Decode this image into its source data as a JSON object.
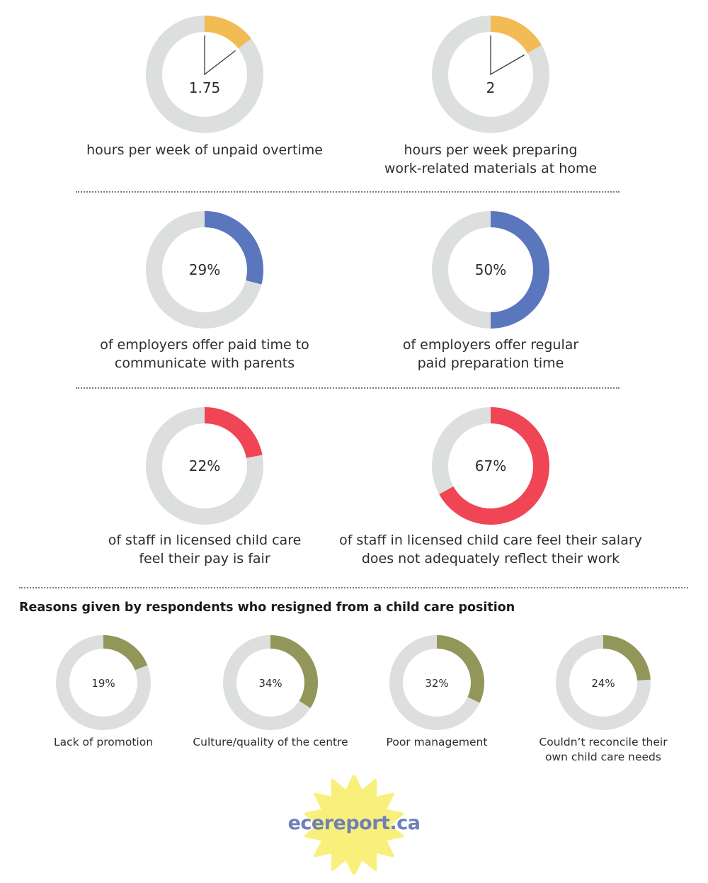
{
  "chart_data": [
    {
      "type": "pie",
      "variant": "clock",
      "value": 1.75,
      "max": 12,
      "display": "1.75",
      "color": "#f3bb53",
      "caption": "hours per week of unpaid overtime"
    },
    {
      "type": "pie",
      "variant": "clock",
      "value": 2,
      "max": 12,
      "display": "2",
      "color": "#f3bb53",
      "caption": "hours per week preparing\nwork-related materials at home"
    },
    {
      "type": "pie",
      "variant": "percent",
      "value": 29,
      "max": 100,
      "display": "29%",
      "color": "#5a76bd",
      "caption": "of employers offer paid time to\ncommunicate with parents"
    },
    {
      "type": "pie",
      "variant": "percent",
      "value": 50,
      "max": 100,
      "display": "50%",
      "color": "#5a76bd",
      "caption": "of employers offer regular\npaid preparation time"
    },
    {
      "type": "pie",
      "variant": "percent",
      "value": 22,
      "max": 100,
      "display": "22%",
      "color": "#f04555",
      "caption": "of staff in licensed child care\nfeel their pay is fair"
    },
    {
      "type": "pie",
      "variant": "percent",
      "value": 67,
      "max": 100,
      "display": "67%",
      "color": "#f04555",
      "caption": "of staff in licensed child care feel their salary\ndoes not adequately reflect their work"
    },
    {
      "type": "pie",
      "variant": "percent",
      "value": 19,
      "max": 100,
      "display": "19%",
      "color": "#939659",
      "caption": "Lack of promotion"
    },
    {
      "type": "pie",
      "variant": "percent",
      "value": 34,
      "max": 100,
      "display": "34%",
      "color": "#939659",
      "caption": "Culture/quality of the centre"
    },
    {
      "type": "pie",
      "variant": "percent",
      "value": 32,
      "max": 100,
      "display": "32%",
      "color": "#939659",
      "caption": "Poor management"
    },
    {
      "type": "pie",
      "variant": "percent",
      "value": 24,
      "max": 100,
      "display": "24%",
      "color": "#939659",
      "caption": "Couldn’t reconcile their\nown child care needs"
    }
  ],
  "section_title": "Reasons given by respondents who resigned from a child care position",
  "logo": {
    "text": "ecereport.ca",
    "text_color": "#6f7fb8",
    "sun_color": "#f8f07a"
  },
  "colors": {
    "track": "#dcdfde",
    "divider": "#7a7a7a",
    "clock_hand": "#3a3a3a"
  }
}
